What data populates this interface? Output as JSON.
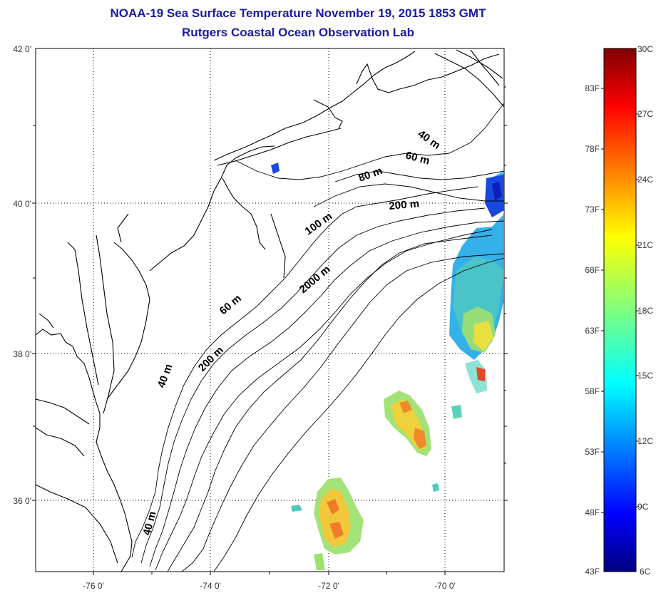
{
  "title": {
    "line1": "NOAA-19 Sea Surface Temperature November 19, 2015 1853 GMT",
    "line2": "Rutgers Coastal Ocean Observation Lab"
  },
  "lat_labels": [
    "42 0'",
    "40 0'",
    "38 0'",
    "36 0'"
  ],
  "lon_labels": [
    "-76 0'",
    "-74 0'",
    "-72 0'",
    "-70 0'"
  ],
  "contour_labels": [
    "40 m",
    "60 m",
    "80 m",
    "200 m",
    "100 m",
    "2000 m",
    "60 m",
    "200 m",
    "40 m",
    "40 m"
  ],
  "colorbar": {
    "fahrenheit": [
      "83F",
      "78F",
      "73F",
      "68F",
      "63F",
      "58F",
      "53F",
      "48F",
      "43F"
    ],
    "celsius": [
      "30C",
      "27C",
      "24C",
      "21C",
      "18C",
      "15C",
      "12C",
      "9C",
      "6C"
    ]
  },
  "colors": {
    "title": "#1a1aa8",
    "coast": "#000000",
    "sst_cold": "#00007f",
    "sst_warm": "#7f0000"
  }
}
